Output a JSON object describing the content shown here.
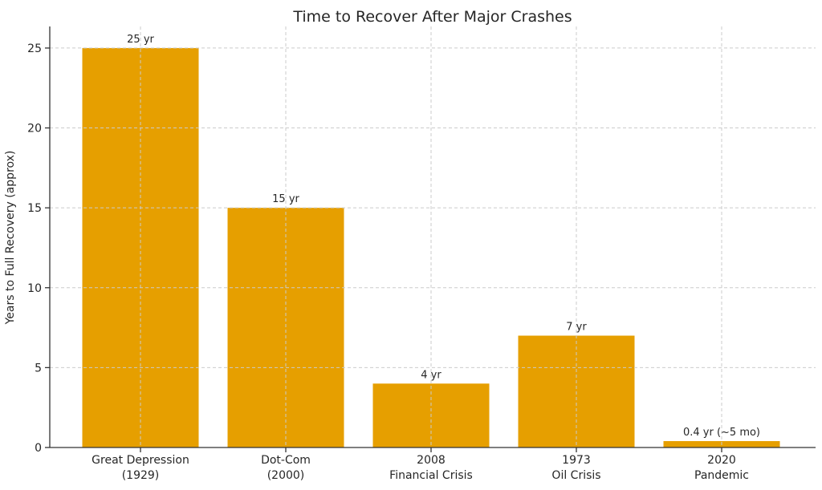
{
  "chart_data": {
    "type": "bar",
    "title": "Time to Recover After Major Crashes",
    "xlabel": "",
    "ylabel": "Years to Full Recovery (approx)",
    "categories": [
      "Great Depression\n(1929)",
      "Dot-Com\n(2000)",
      "2008\nFinancial Crisis",
      "1973\nOil Crisis",
      "2020\nPandemic"
    ],
    "values": [
      25,
      15,
      4,
      7,
      0.4
    ],
    "bar_labels": [
      "25 yr",
      "15 yr",
      "4 yr",
      "7 yr",
      "0.4 yr (~5 mo)"
    ],
    "yticks": [
      0,
      5,
      10,
      15,
      20,
      25
    ],
    "ylim": [
      0,
      26.35
    ],
    "grid": true,
    "grid_style": "dashed",
    "legend": null,
    "colors": {
      "bar": "#E69F00",
      "grid": "#cbcbcb",
      "axis": "#333333",
      "text": "#262626"
    }
  }
}
